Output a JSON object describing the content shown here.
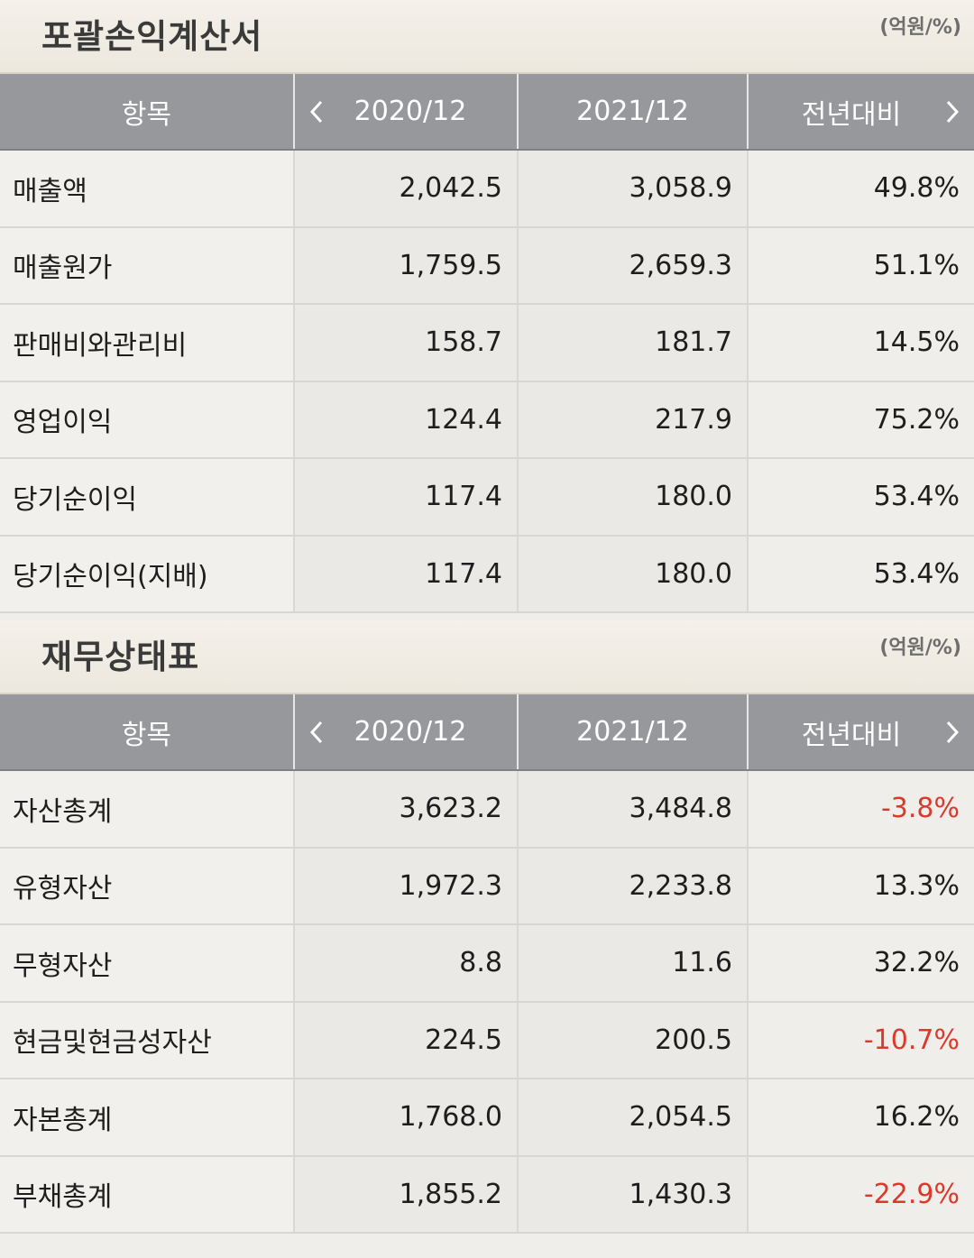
{
  "income_statement": {
    "title": "포괄손익계산서",
    "unit": "(억원/%)",
    "headers": {
      "item": "항목",
      "col1": "2020/12",
      "col2": "2021/12",
      "col3": "전년대비"
    },
    "rows": [
      {
        "label": "매출액",
        "v2020": "2,042.5",
        "v2021": "3,058.9",
        "yoy": "49.8%"
      },
      {
        "label": "매출원가",
        "v2020": "1,759.5",
        "v2021": "2,659.3",
        "yoy": "51.1%"
      },
      {
        "label": "판매비와관리비",
        "v2020": "158.7",
        "v2021": "181.7",
        "yoy": "14.5%"
      },
      {
        "label": "영업이익",
        "v2020": "124.4",
        "v2021": "217.9",
        "yoy": "75.2%"
      },
      {
        "label": "당기순이익",
        "v2020": "117.4",
        "v2021": "180.0",
        "yoy": "53.4%"
      },
      {
        "label": "당기순이익(지배)",
        "v2020": "117.4",
        "v2021": "180.0",
        "yoy": "53.4%"
      }
    ]
  },
  "balance_sheet": {
    "title": "재무상태표",
    "unit": "(억원/%)",
    "headers": {
      "item": "항목",
      "col1": "2020/12",
      "col2": "2021/12",
      "col3": "전년대비"
    },
    "rows": [
      {
        "label": "자산총계",
        "v2020": "3,623.2",
        "v2021": "3,484.8",
        "yoy": "-3.8%"
      },
      {
        "label": "유형자산",
        "v2020": "1,972.3",
        "v2021": "2,233.8",
        "yoy": "13.3%"
      },
      {
        "label": "무형자산",
        "v2020": "8.8",
        "v2021": "11.6",
        "yoy": "32.2%"
      },
      {
        "label": "현금및현금성자산",
        "v2020": "224.5",
        "v2021": "200.5",
        "yoy": "-10.7%"
      },
      {
        "label": "자본총계",
        "v2020": "1,768.0",
        "v2021": "2,054.5",
        "yoy": "16.2%"
      },
      {
        "label": "부채총계",
        "v2020": "1,855.2",
        "v2021": "1,430.3",
        "yoy": "-22.9%"
      }
    ]
  },
  "colors": {
    "negative": "#d83a2c",
    "header_bg": "#96989c"
  },
  "icons": {
    "prev": "chevron-left-icon",
    "next": "chevron-right-icon"
  }
}
